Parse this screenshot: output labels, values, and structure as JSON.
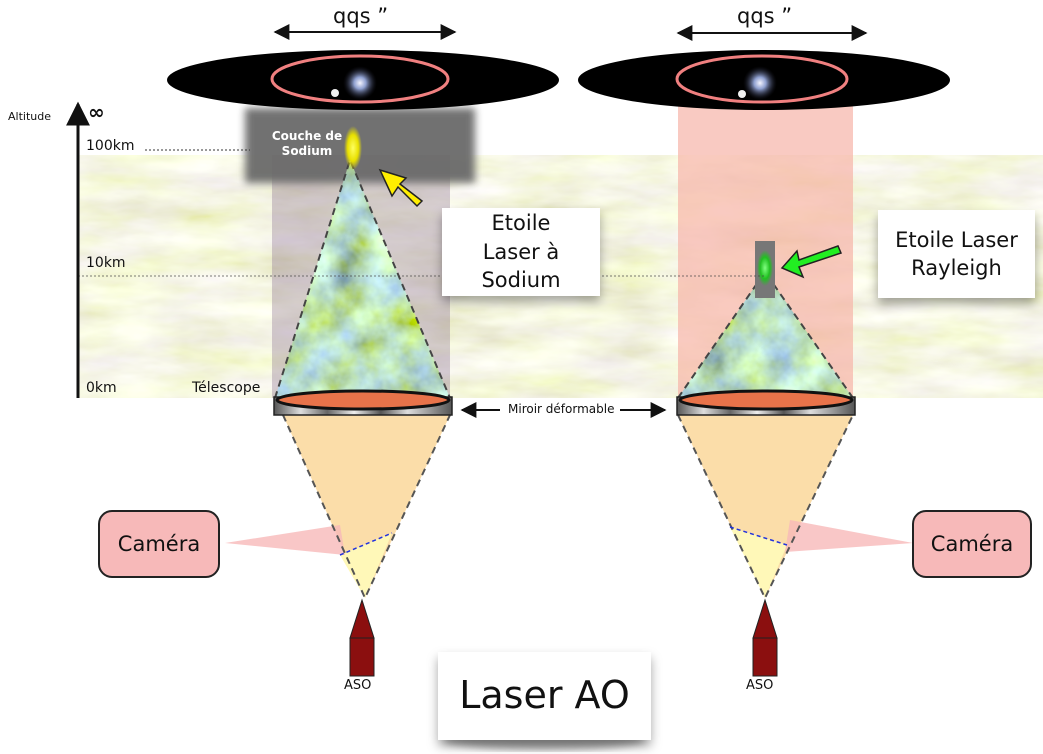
{
  "field_label": "qqs ”",
  "altitude": {
    "title": "Altitude",
    "infinity": "∞",
    "levels": [
      "100km",
      "10km",
      "0km"
    ]
  },
  "sodium_layer_label": "Couche de Sodium",
  "telescope_label": "Télescope",
  "mirror_label": "Miroir déformable",
  "sodium_star_label": "Etoile Laser à Sodium",
  "rayleigh_star_label": "Etoile Laser Rayleigh",
  "camera_label": "Caméra",
  "wfs_label": "ASO",
  "title": "Laser AO",
  "colors": {
    "sodium_arrow": "#ffee00",
    "rayleigh_arrow": "#22ee22",
    "beam_cone": "#fbd9a0",
    "camera_fill": "#f7b9b9",
    "laser_column": "#f6b3a8",
    "wfs_shell": "#8b0f0f"
  }
}
